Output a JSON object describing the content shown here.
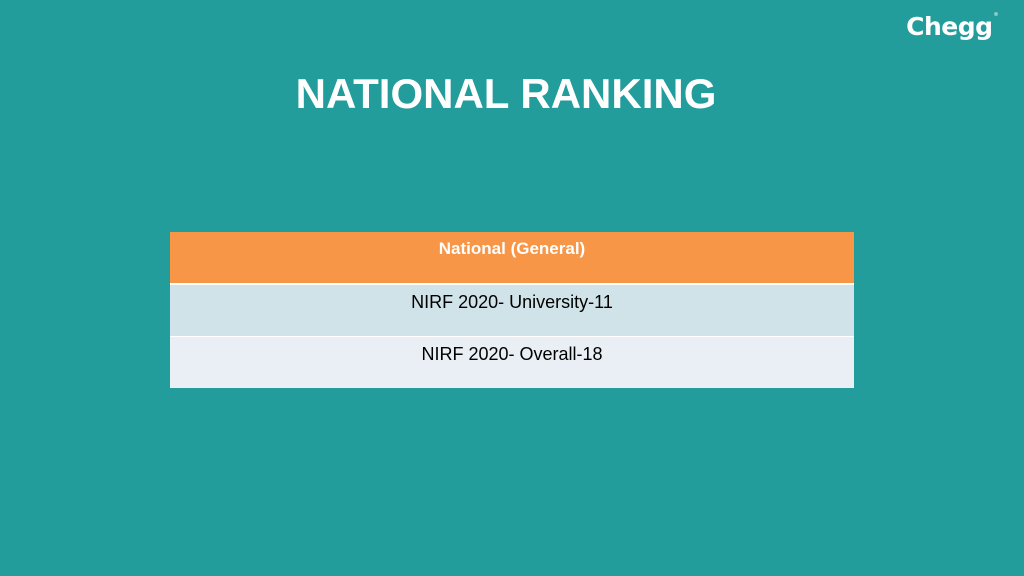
{
  "logo": {
    "text": "Chegg",
    "mark": "®"
  },
  "slide": {
    "title": "NATIONAL RANKING"
  },
  "table": {
    "header": "National (General)",
    "rows": [
      "NIRF 2020- University-11",
      "NIRF 2020- Overall-18"
    ]
  },
  "colors": {
    "background": "#229d9c",
    "header_fill": "#f79646",
    "row_fill_1": "#d0e3e8",
    "row_fill_2": "#e9eff4"
  }
}
